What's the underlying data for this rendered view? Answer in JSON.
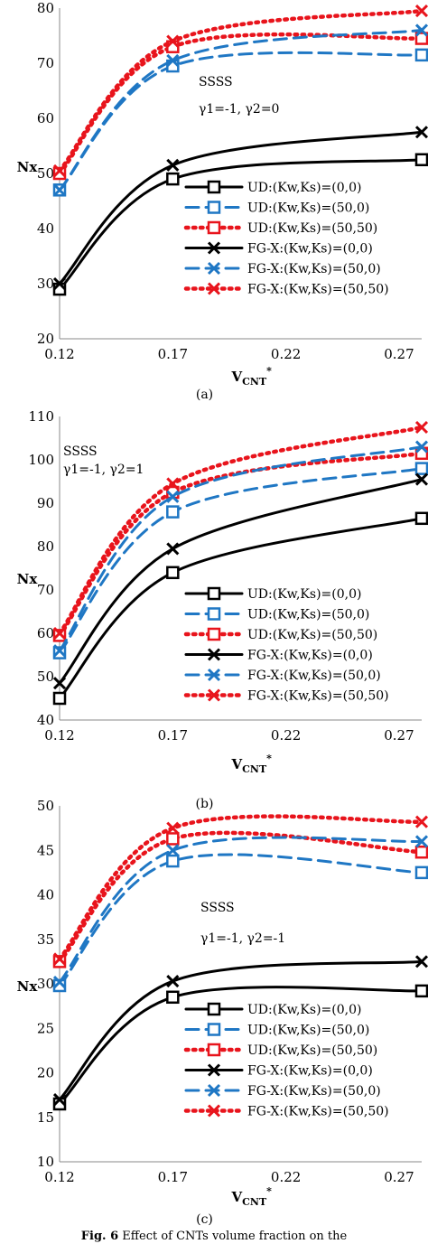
{
  "series_styles": [
    {
      "color": "#000000",
      "dash": "",
      "marker": "square",
      "width": 3
    },
    {
      "color": "#1f77c4",
      "dash": "14,8",
      "marker": "square",
      "width": 3
    },
    {
      "color": "#e8141c",
      "dash": "2.5,5.5",
      "marker": "square",
      "width": 4.5
    },
    {
      "color": "#000000",
      "dash": "",
      "marker": "x",
      "width": 3
    },
    {
      "color": "#1f77c4",
      "dash": "14,8",
      "marker": "x",
      "width": 3
    },
    {
      "color": "#e8141c",
      "dash": "2.5,5.5",
      "marker": "x",
      "width": 4.5
    }
  ],
  "chart_data": [
    {
      "type": "line",
      "caption": "(a)",
      "ylabel": "Nx",
      "xlabel_main": "V",
      "xlabel_sub": "CNT",
      "xlabel_sup": "*",
      "xlim": [
        0.12,
        0.28
      ],
      "ylim": [
        20,
        80
      ],
      "xticks": [
        "0.12",
        "0.17",
        "0.22",
        "0.27"
      ],
      "yticks": [
        20,
        30,
        40,
        50,
        60,
        70,
        80
      ],
      "annotations": [
        "SSSS",
        "γ1=-1, γ2=0"
      ],
      "x": [
        0.12,
        0.17,
        0.28
      ],
      "series": [
        {
          "name": "UD:(Kw,Ks)=(0,0)",
          "values": [
            29,
            49,
            52.5
          ]
        },
        {
          "name": "UD:(Kw,Ks)=(50,0)",
          "values": [
            47,
            69.5,
            71.5
          ]
        },
        {
          "name": "UD:(Kw,Ks)=(50,50)",
          "values": [
            50,
            73,
            74.5
          ]
        },
        {
          "name": "FG-X:(Kw,Ks)=(0,0)",
          "values": [
            30,
            51.5,
            57.5
          ]
        },
        {
          "name": "FG-X:(Kw,Ks)=(50,0)",
          "values": [
            47,
            70.5,
            76
          ]
        },
        {
          "name": "FG-X:(Kw,Ks)=(50,50)",
          "values": [
            50.5,
            74,
            79.5
          ]
        }
      ]
    },
    {
      "type": "line",
      "caption": "(b)",
      "ylabel": "Nx",
      "xlabel_main": "V",
      "xlabel_sub": "CNT",
      "xlabel_sup": "*",
      "xlim": [
        0.12,
        0.28
      ],
      "ylim": [
        40,
        110
      ],
      "xticks": [
        "0.12",
        "0.17",
        "0.22",
        "0.27"
      ],
      "yticks": [
        40,
        50,
        60,
        70,
        80,
        90,
        100,
        110
      ],
      "annotations": [
        "SSSS",
        "γ1=-1, γ2=1"
      ],
      "x": [
        0.12,
        0.17,
        0.28
      ],
      "series": [
        {
          "name": "UD:(Kw,Ks)=(0,0)",
          "values": [
            45,
            74,
            86.5
          ]
        },
        {
          "name": "UD:(Kw,Ks)=(50,0)",
          "values": [
            55.5,
            88,
            98
          ]
        },
        {
          "name": "UD:(Kw,Ks)=(50,50)",
          "values": [
            59.5,
            92.5,
            101.5
          ]
        },
        {
          "name": "FG-X:(Kw,Ks)=(0,0)",
          "values": [
            48.5,
            79.5,
            95.5
          ]
        },
        {
          "name": "FG-X:(Kw,Ks)=(50,0)",
          "values": [
            56,
            91.5,
            103
          ]
        },
        {
          "name": "FG-X:(Kw,Ks)=(50,50)",
          "values": [
            60,
            94.5,
            107.5
          ]
        }
      ]
    },
    {
      "type": "line",
      "caption": "(c)",
      "ylabel": "Nx",
      "xlabel_main": "V",
      "xlabel_sub": "CNT",
      "xlabel_sup": "*",
      "xlim": [
        0.12,
        0.28
      ],
      "ylim": [
        10,
        50
      ],
      "xticks": [
        "0.12",
        "0.17",
        "0.22",
        "0.27"
      ],
      "yticks": [
        10,
        15,
        20,
        25,
        30,
        35,
        40,
        45,
        50
      ],
      "annotations": [
        "SSSS",
        "γ1=-1, γ2=-1"
      ],
      "x": [
        0.12,
        0.17,
        0.28
      ],
      "series": [
        {
          "name": "UD:(Kw,Ks)=(0,0)",
          "values": [
            16.5,
            28.5,
            29.2
          ]
        },
        {
          "name": "UD:(Kw,Ks)=(50,0)",
          "values": [
            29.8,
            43.8,
            42.5
          ]
        },
        {
          "name": "UD:(Kw,Ks)=(50,50)",
          "values": [
            32.5,
            46.3,
            44.8
          ]
        },
        {
          "name": "FG-X:(Kw,Ks)=(0,0)",
          "values": [
            17,
            30.3,
            32.5
          ]
        },
        {
          "name": "FG-X:(Kw,Ks)=(50,0)",
          "values": [
            30.2,
            45,
            46
          ]
        },
        {
          "name": "FG-X:(Kw,Ks)=(50,50)",
          "values": [
            32.8,
            47.5,
            48.2
          ]
        }
      ]
    }
  ],
  "figure_caption": {
    "label": "Fig. 6",
    "text": " Effect of CNTs volume fraction on the"
  }
}
